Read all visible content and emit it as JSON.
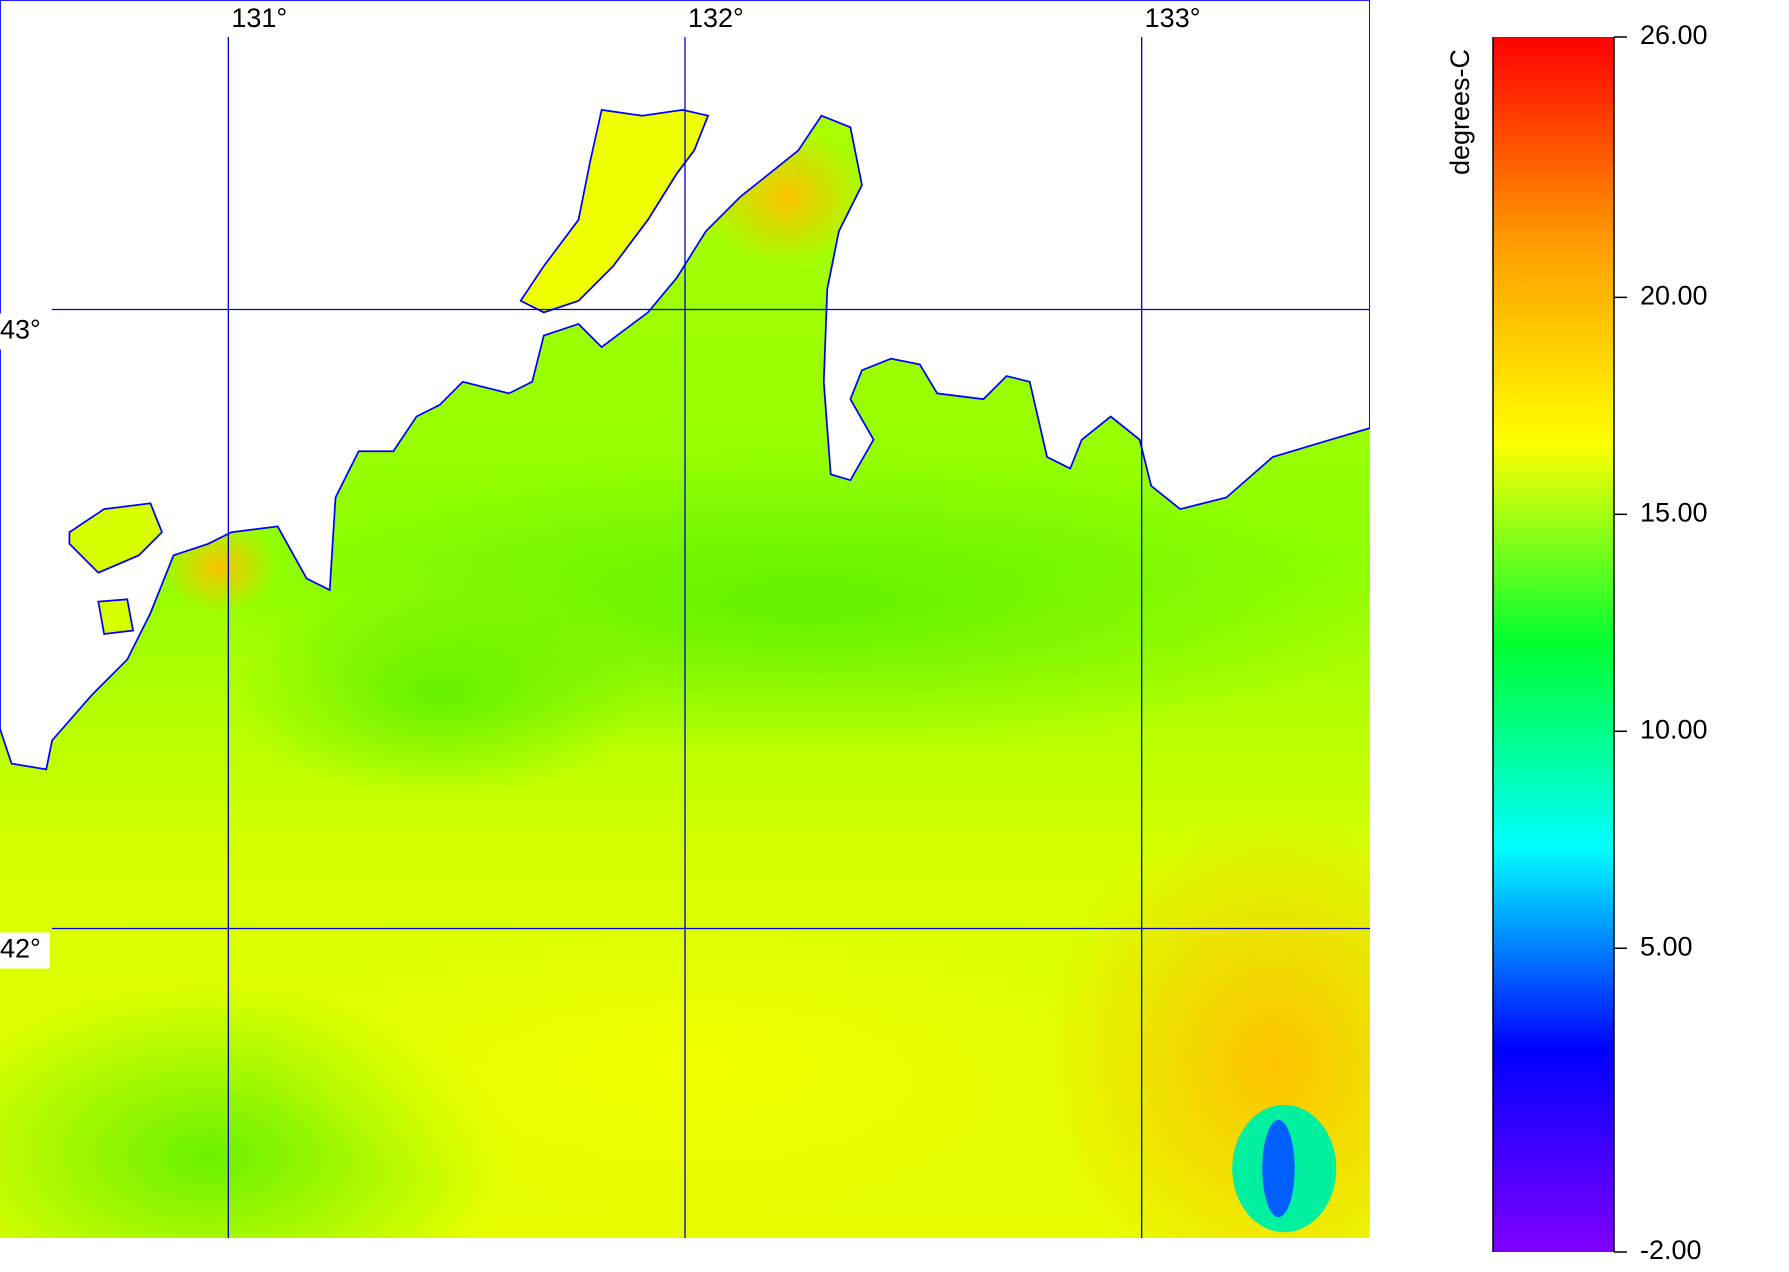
{
  "chart_data": {
    "type": "heatmap-map",
    "xlim": [
      130.5,
      133.5
    ],
    "ylim": [
      41.5,
      43.5
    ],
    "xticks": [
      {
        "value": 131,
        "label": "131°"
      },
      {
        "value": 132,
        "label": "132°"
      },
      {
        "value": 133,
        "label": "133°"
      }
    ],
    "yticks": [
      {
        "value": 43,
        "label": "43°"
      },
      {
        "value": 42,
        "label": "42°"
      }
    ],
    "grid_color": "#0000c8",
    "colorbar": {
      "label": "degrees-C",
      "lim": [
        -2,
        26
      ],
      "ticks": [
        {
          "value": 26,
          "label": "26.00"
        },
        {
          "value": 20,
          "label": "20.00"
        },
        {
          "value": 15,
          "label": "15.00"
        },
        {
          "value": 10,
          "label": "10.00"
        },
        {
          "value": 5,
          "label": "5.00"
        },
        {
          "value": -2,
          "label": "-2.00"
        }
      ],
      "colors": [
        "#8000ff",
        "#0000ff",
        "#00ffff",
        "#00ff30",
        "#ffff00",
        "#ff9a00",
        "#ff0000"
      ]
    }
  }
}
